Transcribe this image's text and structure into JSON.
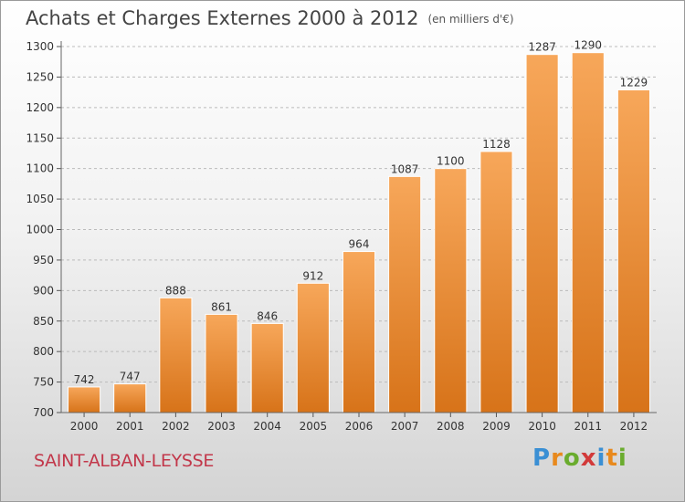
{
  "title": "Achats et Charges Externes 2000 à 2012",
  "unit_note": "(en milliers d'€)",
  "commune": "SAINT-ALBAN-LEYSSE",
  "logo": {
    "text": "Proxiti",
    "letter_colors": [
      "#3a8fd4",
      "#e8891d",
      "#6aac2e",
      "#d23a3a",
      "#3a8fd4",
      "#e8891d",
      "#6aac2e"
    ]
  },
  "colors": {
    "bar_top": "#f7a75a",
    "bar_bottom": "#d77319",
    "grid": "#bbbbbb",
    "axis_text": "#333333",
    "commune": "#c2374a"
  },
  "chart_data": {
    "type": "bar",
    "categories": [
      "2000",
      "2001",
      "2002",
      "2003",
      "2004",
      "2005",
      "2006",
      "2007",
      "2008",
      "2009",
      "2010",
      "2011",
      "2012"
    ],
    "values": [
      742,
      747,
      888,
      861,
      846,
      912,
      964,
      1087,
      1100,
      1128,
      1287,
      1290,
      1229
    ],
    "ylim": [
      700,
      1300
    ],
    "yticks": [
      700,
      750,
      800,
      850,
      900,
      950,
      1000,
      1050,
      1100,
      1150,
      1200,
      1250,
      1300
    ],
    "grid": true,
    "data_labels": true
  }
}
